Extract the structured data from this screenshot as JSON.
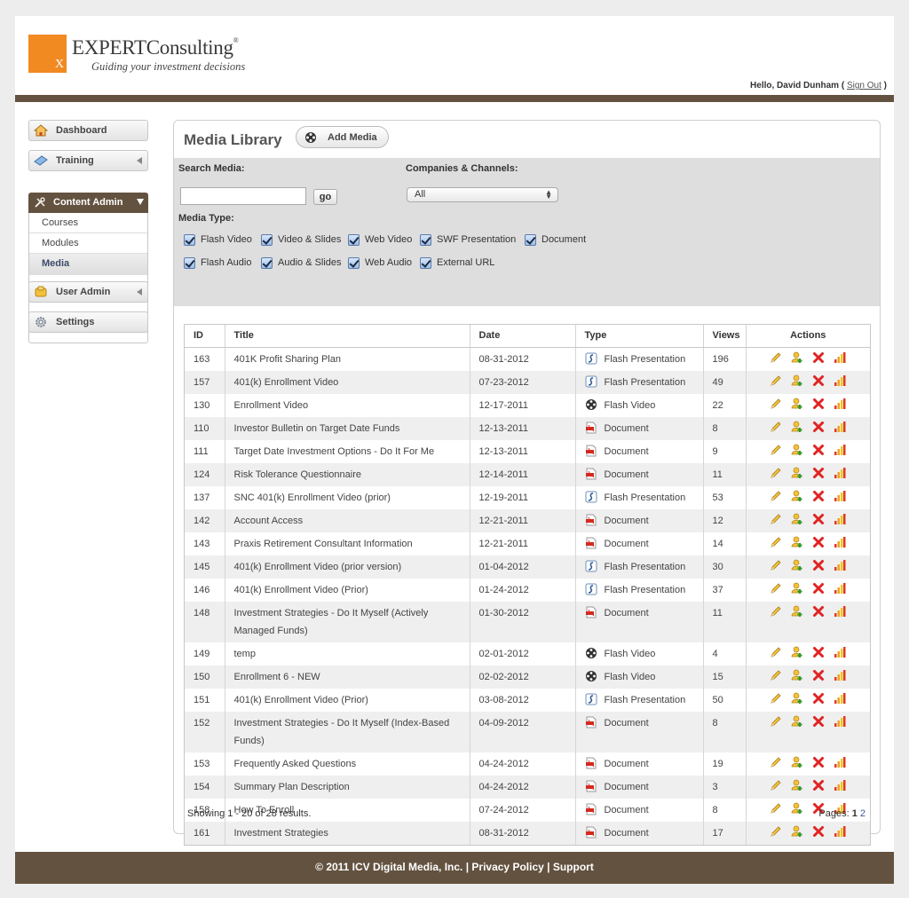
{
  "brand": {
    "name": "EXPERTConsulting",
    "reg": "®",
    "tagline": "Guiding your investment decisions",
    "mark": "X",
    "accent": "#f18a21",
    "bar_color": "#63523f"
  },
  "user": {
    "greeting": "Hello, David Dunham (",
    "sign_out": "Sign Out",
    "close": ")"
  },
  "sidebar": {
    "dashboard": "Dashboard",
    "training": "Training",
    "content_admin": "Content Admin",
    "sub": [
      "Courses",
      "Modules",
      "Media"
    ],
    "user_admin": "User Admin",
    "settings": "Settings"
  },
  "panel": {
    "title": "Media Library",
    "add_media": "Add Media",
    "search_label": "Search Media:",
    "search_value": "",
    "go": "go",
    "companies_label": "Companies & Channels:",
    "companies_value": "All",
    "media_type_label": "Media Type:",
    "media_types": [
      "Flash Video",
      "Video & Slides",
      "Web Video",
      "SWF Presentation",
      "Document",
      "Flash Audio",
      "Audio & Slides",
      "Web Audio",
      "External URL"
    ]
  },
  "table": {
    "headers": [
      "ID",
      "Title",
      "Date",
      "Type",
      "Views",
      "Actions"
    ],
    "rows": [
      {
        "id": "163",
        "title": "401K Profit Sharing Plan",
        "date": "08-31-2012",
        "type": "Flash Presentation",
        "icon": "flash-presentation-icon",
        "views": "196"
      },
      {
        "id": "157",
        "title": "401(k) Enrollment Video",
        "date": "07-23-2012",
        "type": "Flash Presentation",
        "icon": "flash-presentation-icon",
        "views": "49"
      },
      {
        "id": "130",
        "title": "Enrollment Video",
        "date": "12-17-2011",
        "type": "Flash Video",
        "icon": "film-reel-icon",
        "views": "22"
      },
      {
        "id": "110",
        "title": "Investor Bulletin on Target Date Funds",
        "date": "12-13-2011",
        "type": "Document",
        "icon": "pdf-document-icon",
        "views": "8"
      },
      {
        "id": "111",
        "title": "Target Date Investment Options - Do It For Me",
        "date": "12-13-2011",
        "type": "Document",
        "icon": "pdf-document-icon",
        "views": "9"
      },
      {
        "id": "124",
        "title": "Risk Tolerance Questionnaire",
        "date": "12-14-2011",
        "type": "Document",
        "icon": "pdf-document-icon",
        "views": "11"
      },
      {
        "id": "137",
        "title": "SNC 401(k) Enrollment Video (prior)",
        "date": "12-19-2011",
        "type": "Flash Presentation",
        "icon": "flash-presentation-icon",
        "views": "53"
      },
      {
        "id": "142",
        "title": "Account Access",
        "date": "12-21-2011",
        "type": "Document",
        "icon": "pdf-document-icon",
        "views": "12"
      },
      {
        "id": "143",
        "title": "Praxis Retirement Consultant Information",
        "date": "12-21-2011",
        "type": "Document",
        "icon": "pdf-document-icon",
        "views": "14"
      },
      {
        "id": "145",
        "title": "401(k) Enrollment Video (prior version)",
        "date": "01-04-2012",
        "type": "Flash Presentation",
        "icon": "flash-presentation-icon",
        "views": "30"
      },
      {
        "id": "146",
        "title": "401(k) Enrollment Video (Prior)",
        "date": "01-24-2012",
        "type": "Flash Presentation",
        "icon": "flash-presentation-icon",
        "views": "37"
      },
      {
        "id": "148",
        "title": "Investment Strategies - Do It Myself (Actively Managed Funds)",
        "date": "01-30-2012",
        "type": "Document",
        "icon": "pdf-document-icon",
        "views": "11"
      },
      {
        "id": "149",
        "title": "temp",
        "date": "02-01-2012",
        "type": "Flash Video",
        "icon": "film-reel-icon",
        "views": "4"
      },
      {
        "id": "150",
        "title": "Enrollment 6 - NEW",
        "date": "02-02-2012",
        "type": "Flash Video",
        "icon": "film-reel-icon",
        "views": "15"
      },
      {
        "id": "151",
        "title": "401(k) Enrollment Video (Prior)",
        "date": "03-08-2012",
        "type": "Flash Presentation",
        "icon": "flash-presentation-icon",
        "views": "50"
      },
      {
        "id": "152",
        "title": "Investment Strategies - Do It Myself (Index-Based Funds)",
        "date": "04-09-2012",
        "type": "Document",
        "icon": "pdf-document-icon",
        "views": "8"
      },
      {
        "id": "153",
        "title": "Frequently Asked Questions",
        "date": "04-24-2012",
        "type": "Document",
        "icon": "pdf-document-icon",
        "views": "19"
      },
      {
        "id": "154",
        "title": "Summary Plan Description",
        "date": "04-24-2012",
        "type": "Document",
        "icon": "pdf-document-icon",
        "views": "3"
      },
      {
        "id": "158",
        "title": "How To Enroll",
        "date": "07-24-2012",
        "type": "Document",
        "icon": "pdf-document-icon",
        "views": "8"
      },
      {
        "id": "161",
        "title": "Investment Strategies",
        "date": "08-31-2012",
        "type": "Document",
        "icon": "pdf-document-icon",
        "views": "17"
      }
    ],
    "actions": [
      "edit-pencil-icon",
      "add-user-icon",
      "delete-x-icon",
      "stats-chart-icon"
    ]
  },
  "pagination": {
    "showing": "Showing 1 - 20 of 28 results.",
    "label": "Pages:",
    "current": "1",
    "other": "2"
  },
  "footer": {
    "copyright": "© 2011 ICV Digital Media, Inc. |",
    "privacy": "Privacy Policy",
    "sep": "|",
    "support": "Support"
  }
}
